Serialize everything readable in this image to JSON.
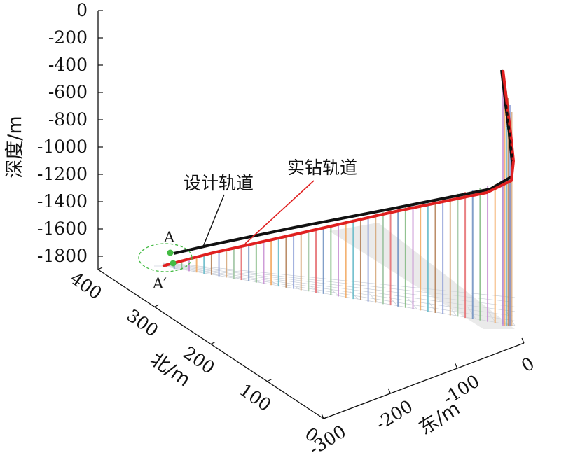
{
  "chart_data": {
    "type": "line",
    "title": "",
    "z_axis": {
      "label": "深度/m",
      "ticks": [
        "0",
        "-200",
        "-400",
        "-600",
        "-800",
        "-1000",
        "-1200",
        "-1400",
        "-1600",
        "-1800"
      ],
      "range": [
        -1900,
        0
      ]
    },
    "north_axis": {
      "label": "北/m",
      "ticks": [
        "400",
        "300",
        "200",
        "100",
        "0"
      ],
      "range": [
        0,
        400
      ]
    },
    "east_axis": {
      "label": "东/m",
      "ticks": [
        "0",
        "-100",
        "-200",
        "-300"
      ],
      "range": [
        -300,
        0
      ]
    },
    "series": [
      {
        "name": "设计轨道",
        "color": "#111111",
        "points_ene_depth": [
          [
            -5,
            0,
            -450
          ],
          [
            -8,
            0,
            -700
          ],
          [
            -12,
            0,
            -1000
          ],
          [
            -15,
            0,
            -1150
          ],
          [
            -20,
            20,
            -1220
          ],
          [
            -40,
            60,
            -1260
          ],
          [
            -100,
            140,
            -1330
          ],
          [
            -160,
            220,
            -1410
          ],
          [
            -220,
            300,
            -1490
          ],
          [
            -280,
            370,
            -1560
          ],
          [
            -300,
            385,
            -1580
          ]
        ]
      },
      {
        "name": "实钻轨道",
        "color": "#e02020",
        "points_ene_depth": [
          [
            -5,
            0,
            -450
          ],
          [
            -10,
            0,
            -700
          ],
          [
            -13,
            0,
            -1000
          ],
          [
            -16,
            0,
            -1150
          ],
          [
            -22,
            22,
            -1230
          ],
          [
            -45,
            65,
            -1275
          ],
          [
            -105,
            145,
            -1350
          ],
          [
            -165,
            225,
            -1430
          ],
          [
            -225,
            305,
            -1510
          ],
          [
            -285,
            375,
            -1590
          ],
          [
            -305,
            390,
            -1610
          ]
        ]
      }
    ],
    "annotations": [
      {
        "text": "设计轨道",
        "target": "设计轨道"
      },
      {
        "text": "实钻轨道",
        "target": "实钻轨道"
      }
    ],
    "points": [
      {
        "label": "A",
        "series": "设计轨道",
        "color": "#44bb44"
      },
      {
        "label": "A′",
        "series": "实钻轨道",
        "color": "#44bb44"
      }
    ]
  }
}
